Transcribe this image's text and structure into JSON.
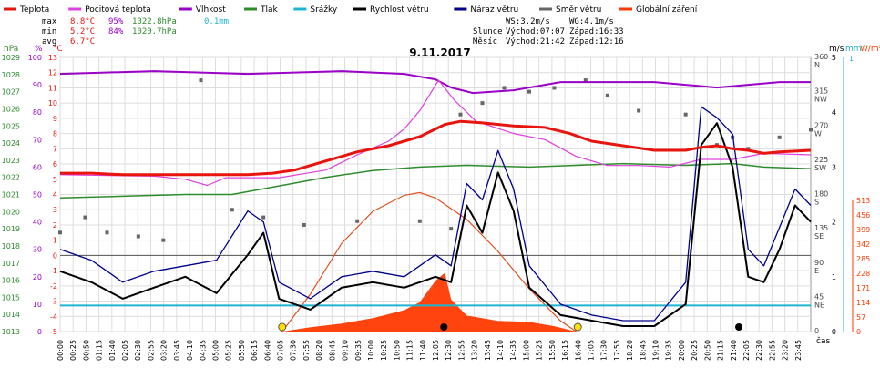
{
  "title": "9.11.2017",
  "legend": [
    {
      "label": "Teplota",
      "color": "#e8140e"
    },
    {
      "label": "Pocitová teplota",
      "color": "#e040e0"
    },
    {
      "label": "Vlhkost",
      "color": "#9a00c8"
    },
    {
      "label": "Tlak",
      "color": "#2e8b2e"
    },
    {
      "label": "Srážky",
      "color": "#1eb4d2"
    },
    {
      "label": "Rychlost větru",
      "color": "#000000"
    },
    {
      "label": "Náraz větru",
      "color": "#00008b"
    },
    {
      "label": "Směr větru",
      "color": "#666666"
    },
    {
      "label": "Globální záření",
      "color": "#ff3a00"
    }
  ],
  "stats": {
    "max_label": "max",
    "max_temp": "8.8°C",
    "max_hum": "95%",
    "max_press": "1022.8hPa",
    "rain": "0.1mm",
    "min_label": "min",
    "min_temp": "5.2°C",
    "min_hum": "84%",
    "min_press": "1020.7hPa",
    "avg_label": "avg",
    "avg_temp": "6.7°C"
  },
  "wind_summary": {
    "ws": "WS:3.2m/s",
    "wg": "WG:4.1m/s"
  },
  "astro": {
    "sun_label": "Slunce",
    "sun_rise": "Východ:07:07",
    "sun_set": "Západ:16:33",
    "moon_label": "Měsíc",
    "moon_rise": "Východ:21:42",
    "moon_set": "Západ:12:16"
  },
  "axis_units": {
    "hpa": "hPa",
    "pct": "%",
    "degc": "°C",
    "ms": "m/s",
    "mm": "mm",
    "wm2": "W/m²",
    "time": "čas"
  },
  "axes": {
    "pressure": [
      "1029",
      "1028",
      "1027",
      "1026",
      "1025",
      "1024",
      "1023",
      "1022",
      "1021",
      "1020",
      "1019",
      "1018",
      "1017",
      "1016",
      "1015",
      "1014",
      "1013"
    ],
    "humidity": [
      "100",
      "90",
      "80",
      "70",
      "60",
      "50",
      "40",
      "30",
      "20",
      "10",
      "0"
    ],
    "temperature": [
      "13",
      "12",
      "11",
      "10",
      "9",
      "8",
      "7",
      "6",
      "5",
      "4",
      "3",
      "2",
      "1",
      "0",
      "-1",
      "-2",
      "-3",
      "-4",
      "-5"
    ],
    "direction": [
      {
        "deg": "360",
        "dir": "N"
      },
      {
        "deg": "315",
        "dir": "NW"
      },
      {
        "deg": "270",
        "dir": "W"
      },
      {
        "deg": "225",
        "dir": "SW"
      },
      {
        "deg": "180",
        "dir": "S"
      },
      {
        "deg": "135",
        "dir": "SE"
      },
      {
        "deg": "90",
        "dir": "E"
      },
      {
        "deg": "45",
        "dir": "NE"
      },
      {
        "deg": "0",
        "dir": ""
      }
    ],
    "wind_speed": [
      "5",
      "4",
      "3",
      "2",
      "1",
      "0"
    ],
    "rain_mm": [
      "1",
      "0"
    ],
    "radiation": [
      "513",
      "456",
      "399",
      "342",
      "285",
      "228",
      "171",
      "114",
      "57",
      "0"
    ],
    "time_labels": [
      "00:00",
      "00:25",
      "00:50",
      "01:15",
      "01:40",
      "02:05",
      "02:30",
      "02:55",
      "03:20",
      "03:45",
      "04:10",
      "04:35",
      "05:00",
      "05:25",
      "05:50",
      "06:15",
      "06:40",
      "07:05",
      "07:30",
      "07:55",
      "08:20",
      "08:45",
      "09:10",
      "09:35",
      "10:00",
      "10:25",
      "10:50",
      "11:15",
      "11:40",
      "12:05",
      "12:30",
      "12:55",
      "13:20",
      "13:45",
      "14:10",
      "14:35",
      "15:00",
      "15:25",
      "15:50",
      "16:15",
      "16:40",
      "17:05",
      "17:30",
      "17:55",
      "18:20",
      "18:45",
      "19:10",
      "19:35",
      "20:00",
      "20:25",
      "20:50",
      "21:15",
      "21:40",
      "22:05",
      "22:30",
      "22:55",
      "23:20",
      "23:45"
    ]
  },
  "chart_data": {
    "type": "line",
    "title": "9.11.2017",
    "x_unit": "hour of day",
    "xlim": [
      0,
      24
    ],
    "series": [
      {
        "name": "Teplota",
        "unit": "°C",
        "color": "#e8140e",
        "points": [
          [
            0,
            5.4
          ],
          [
            1,
            5.4
          ],
          [
            2,
            5.3
          ],
          [
            3,
            5.3
          ],
          [
            4,
            5.3
          ],
          [
            5,
            5.3
          ],
          [
            6,
            5.3
          ],
          [
            6.8,
            5.4
          ],
          [
            7.5,
            5.6
          ],
          [
            8.5,
            6.2
          ],
          [
            9.5,
            6.8
          ],
          [
            10.5,
            7.2
          ],
          [
            11.5,
            7.8
          ],
          [
            12.3,
            8.6
          ],
          [
            12.8,
            8.8
          ],
          [
            13.5,
            8.7
          ],
          [
            14.5,
            8.5
          ],
          [
            15.5,
            8.4
          ],
          [
            16.3,
            8.0
          ],
          [
            17,
            7.5
          ],
          [
            18,
            7.2
          ],
          [
            19,
            6.9
          ],
          [
            20,
            6.9
          ],
          [
            20.5,
            7.1
          ],
          [
            21,
            7.2
          ],
          [
            21.5,
            7.0
          ],
          [
            22,
            6.9
          ],
          [
            22.5,
            6.7
          ],
          [
            23,
            6.8
          ],
          [
            24,
            6.9
          ]
        ]
      },
      {
        "name": "Pocitová teplota",
        "unit": "°C",
        "color": "#e040e0",
        "points": [
          [
            0,
            5.3
          ],
          [
            3,
            5.2
          ],
          [
            4,
            5.0
          ],
          [
            4.7,
            4.6
          ],
          [
            5.3,
            5.1
          ],
          [
            6,
            5.1
          ],
          [
            7,
            5.1
          ],
          [
            8.5,
            5.6
          ],
          [
            9.5,
            6.6
          ],
          [
            10.5,
            7.5
          ],
          [
            11,
            8.3
          ],
          [
            11.5,
            9.5
          ],
          [
            12.1,
            11.5
          ],
          [
            12.6,
            10.2
          ],
          [
            13.3,
            8.8
          ],
          [
            14.5,
            8.0
          ],
          [
            15.5,
            7.6
          ],
          [
            16.5,
            6.5
          ],
          [
            17.5,
            5.9
          ],
          [
            18.5,
            5.9
          ],
          [
            19.5,
            5.8
          ],
          [
            20.5,
            6.3
          ],
          [
            21.5,
            6.3
          ],
          [
            22.5,
            6.7
          ],
          [
            24,
            6.6
          ]
        ]
      },
      {
        "name": "Vlhkost",
        "unit": "%",
        "color": "#9a00c8",
        "points": [
          [
            0,
            94
          ],
          [
            3,
            95
          ],
          [
            6,
            94
          ],
          [
            9,
            95
          ],
          [
            11,
            94
          ],
          [
            12,
            92
          ],
          [
            12.5,
            89
          ],
          [
            13.2,
            87
          ],
          [
            14.5,
            88
          ],
          [
            16,
            91
          ],
          [
            17.5,
            91
          ],
          [
            19,
            91
          ],
          [
            20,
            90
          ],
          [
            21,
            89
          ],
          [
            22,
            90
          ],
          [
            23,
            91
          ],
          [
            24,
            91
          ]
        ]
      },
      {
        "name": "Tlak",
        "unit": "hPa",
        "color": "#2e8b2e",
        "points": [
          [
            0,
            1020.8
          ],
          [
            2,
            1020.9
          ],
          [
            4,
            1021.0
          ],
          [
            5.5,
            1021.0
          ],
          [
            7,
            1021.5
          ],
          [
            8.5,
            1022.0
          ],
          [
            10,
            1022.4
          ],
          [
            11.5,
            1022.6
          ],
          [
            13,
            1022.7
          ],
          [
            15,
            1022.6
          ],
          [
            16.5,
            1022.7
          ],
          [
            18,
            1022.8
          ],
          [
            20,
            1022.7
          ],
          [
            21.5,
            1022.8
          ],
          [
            22.5,
            1022.6
          ],
          [
            24,
            1022.5
          ]
        ]
      },
      {
        "name": "Rychlost větru",
        "unit": "m/s",
        "color": "#000000",
        "points": [
          [
            0,
            1.1
          ],
          [
            1,
            0.9
          ],
          [
            2,
            0.6
          ],
          [
            3,
            0.8
          ],
          [
            4,
            1.0
          ],
          [
            5,
            0.7
          ],
          [
            6,
            1.4
          ],
          [
            6.5,
            1.8
          ],
          [
            7,
            0.6
          ],
          [
            8,
            0.4
          ],
          [
            9,
            0.8
          ],
          [
            10,
            0.9
          ],
          [
            11,
            0.8
          ],
          [
            12,
            1.0
          ],
          [
            12.5,
            0.9
          ],
          [
            13,
            2.3
          ],
          [
            13.5,
            1.8
          ],
          [
            14,
            2.9
          ],
          [
            14.5,
            2.2
          ],
          [
            15,
            0.8
          ],
          [
            16,
            0.3
          ],
          [
            17,
            0.2
          ],
          [
            18,
            0.1
          ],
          [
            19,
            0.1
          ],
          [
            20,
            0.5
          ],
          [
            20.5,
            3.4
          ],
          [
            21,
            3.8
          ],
          [
            21.5,
            3.0
          ],
          [
            22,
            1.0
          ],
          [
            22.5,
            0.9
          ],
          [
            23,
            1.5
          ],
          [
            23.5,
            2.3
          ],
          [
            24,
            2.0
          ]
        ]
      },
      {
        "name": "Náraz větru",
        "unit": "m/s",
        "color": "#00008b",
        "points": [
          [
            0,
            1.5
          ],
          [
            1,
            1.3
          ],
          [
            2,
            0.9
          ],
          [
            3,
            1.1
          ],
          [
            4,
            1.2
          ],
          [
            5,
            1.3
          ],
          [
            6,
            2.2
          ],
          [
            6.5,
            2.0
          ],
          [
            7,
            0.9
          ],
          [
            8,
            0.6
          ],
          [
            9,
            1.0
          ],
          [
            10,
            1.1
          ],
          [
            11,
            1.0
          ],
          [
            12,
            1.4
          ],
          [
            12.5,
            1.2
          ],
          [
            13,
            2.7
          ],
          [
            13.5,
            2.4
          ],
          [
            14,
            3.3
          ],
          [
            14.5,
            2.6
          ],
          [
            15,
            1.2
          ],
          [
            16,
            0.5
          ],
          [
            17,
            0.3
          ],
          [
            18,
            0.2
          ],
          [
            19,
            0.2
          ],
          [
            20,
            0.9
          ],
          [
            20.5,
            4.1
          ],
          [
            21,
            3.9
          ],
          [
            21.5,
            3.6
          ],
          [
            22,
            1.5
          ],
          [
            22.5,
            1.2
          ],
          [
            23,
            1.9
          ],
          [
            23.5,
            2.6
          ],
          [
            24,
            2.3
          ]
        ]
      },
      {
        "name": "Směr větru",
        "unit": "°",
        "color": "#666666",
        "points": [
          [
            0,
            130
          ],
          [
            0.8,
            150
          ],
          [
            1.5,
            130
          ],
          [
            2.5,
            125
          ],
          [
            3.3,
            120
          ],
          [
            4.5,
            330
          ],
          [
            5.5,
            160
          ],
          [
            6.5,
            150
          ],
          [
            7.8,
            140
          ],
          [
            9.5,
            145
          ],
          [
            11.5,
            145
          ],
          [
            12.5,
            135
          ],
          [
            12.8,
            285
          ],
          [
            13.5,
            300
          ],
          [
            14.2,
            320
          ],
          [
            15,
            315
          ],
          [
            15.8,
            320
          ],
          [
            16.8,
            330
          ],
          [
            17.5,
            310
          ],
          [
            18.5,
            290
          ],
          [
            20,
            285
          ],
          [
            21,
            245
          ],
          [
            21.5,
            255
          ],
          [
            22,
            240
          ],
          [
            23,
            255
          ],
          [
            24,
            265
          ]
        ]
      },
      {
        "name": "Globální záření",
        "unit": "W/m²",
        "color": "#ff3a00",
        "points": [
          [
            7.1,
            0
          ],
          [
            8,
            8
          ],
          [
            9,
            15
          ],
          [
            10,
            25
          ],
          [
            11,
            40
          ],
          [
            11.5,
            55
          ],
          [
            12,
            95
          ],
          [
            12.3,
            110
          ],
          [
            12.5,
            60
          ],
          [
            13,
            30
          ],
          [
            14,
            20
          ],
          [
            15,
            18
          ],
          [
            15.8,
            10
          ],
          [
            16.5,
            0
          ]
        ]
      }
    ],
    "theoretical_radiation": {
      "name": "Globální záření (teoretické)",
      "color": "#e05020",
      "points": [
        [
          7.1,
          0
        ],
        [
          8,
          70
        ],
        [
          9,
          165
        ],
        [
          10,
          225
        ],
        [
          11,
          255
        ],
        [
          11.5,
          260
        ],
        [
          12,
          250
        ],
        [
          13,
          210
        ],
        [
          14,
          150
        ],
        [
          15,
          80
        ],
        [
          16,
          20
        ],
        [
          16.5,
          0
        ]
      ]
    },
    "rain_total": 0.1,
    "axis_ranges": {
      "temperature": [
        -5,
        13
      ],
      "humidity": [
        0,
        100
      ],
      "pressure": [
        1013,
        1029
      ],
      "wind_speed": [
        0,
        5
      ],
      "direction": [
        0,
        360
      ],
      "radiation": [
        0,
        513
      ]
    },
    "grid": true,
    "legend_position": "top"
  }
}
